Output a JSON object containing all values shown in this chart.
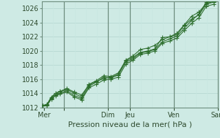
{
  "xlabel": "Pression niveau de la mer( hPa )",
  "bg_color": "#ceeae4",
  "grid_color_major": "#b0d4ce",
  "grid_color_minor": "#c8e6e0",
  "line_color": "#2d6e2d",
  "ylim": [
    1012,
    1027
  ],
  "yticks": [
    1012,
    1014,
    1016,
    1018,
    1020,
    1022,
    1024,
    1026
  ],
  "xlim": [
    0,
    8.4
  ],
  "day_vlines_x": [
    1.05,
    3.15,
    4.2,
    6.3,
    8.4
  ],
  "xtick_positions": [
    0.1,
    1.05,
    3.15,
    4.2,
    6.3,
    8.4
  ],
  "xtick_labels": [
    "Mer",
    "",
    "Dim",
    "Jeu",
    "Ven",
    "Sam"
  ],
  "line1_x": [
    0.05,
    0.25,
    0.45,
    0.65,
    0.85,
    1.2,
    1.55,
    1.9,
    2.25,
    2.6,
    2.95,
    3.3,
    3.65,
    4.0,
    4.35,
    4.7,
    5.05,
    5.4,
    5.75,
    6.1,
    6.45,
    6.8,
    7.15,
    7.5,
    7.85,
    8.2
  ],
  "line1_y": [
    1012.3,
    1012.4,
    1013.3,
    1013.8,
    1014.0,
    1014.4,
    1013.7,
    1013.3,
    1015.0,
    1015.6,
    1016.3,
    1016.2,
    1016.6,
    1018.4,
    1018.9,
    1019.7,
    1019.9,
    1020.2,
    1021.3,
    1021.7,
    1022.1,
    1023.2,
    1024.3,
    1025.2,
    1026.9,
    1027.1
  ],
  "line2_x": [
    0.05,
    0.25,
    0.45,
    0.65,
    0.85,
    1.2,
    1.55,
    1.9,
    2.25,
    2.6,
    2.95,
    3.3,
    3.65,
    4.0,
    4.35,
    4.7,
    5.05,
    5.4,
    5.75,
    6.1,
    6.45,
    6.8,
    7.15,
    7.5,
    7.85,
    8.2
  ],
  "line2_y": [
    1012.3,
    1012.4,
    1013.4,
    1014.0,
    1014.2,
    1014.6,
    1014.0,
    1013.5,
    1015.3,
    1015.8,
    1016.5,
    1016.4,
    1016.9,
    1018.6,
    1019.1,
    1019.8,
    1020.0,
    1020.3,
    1021.9,
    1022.0,
    1022.3,
    1023.6,
    1024.5,
    1025.1,
    1026.6,
    1026.9
  ],
  "line3_x": [
    0.05,
    0.25,
    0.45,
    0.65,
    0.85,
    1.2,
    1.55,
    1.9,
    2.25,
    2.6,
    2.95,
    3.3,
    3.65,
    4.0,
    4.35,
    4.7,
    5.05,
    5.4,
    5.75,
    6.1,
    6.45,
    6.8,
    7.15,
    7.5,
    7.85,
    8.2
  ],
  "line3_y": [
    1012.3,
    1012.3,
    1013.2,
    1013.7,
    1013.9,
    1014.2,
    1013.5,
    1013.1,
    1014.8,
    1015.3,
    1015.9,
    1016.0,
    1016.3,
    1018.1,
    1018.7,
    1019.5,
    1019.7,
    1020.0,
    1021.1,
    1021.4,
    1021.8,
    1022.9,
    1023.9,
    1024.7,
    1026.3,
    1026.6
  ],
  "line4_x": [
    0.05,
    0.25,
    0.45,
    0.65,
    0.85,
    1.2,
    1.55,
    1.9,
    2.25,
    2.6,
    2.95,
    3.3,
    3.65,
    4.0,
    4.35,
    4.7,
    5.05,
    5.4,
    5.75,
    6.1,
    6.45,
    6.8,
    7.15,
    7.5,
    7.85,
    8.2
  ],
  "line4_y": [
    1012.3,
    1012.5,
    1013.5,
    1014.0,
    1014.3,
    1014.7,
    1014.2,
    1013.8,
    1015.2,
    1015.7,
    1016.1,
    1016.3,
    1016.7,
    1018.7,
    1019.3,
    1020.2,
    1020.4,
    1020.8,
    1021.6,
    1022.0,
    1022.5,
    1023.7,
    1024.9,
    1025.5,
    1026.7,
    1027.0
  ],
  "xlabel_fontsize": 8,
  "tick_fontsize": 7,
  "marker_size": 2.2,
  "line_width": 0.8
}
